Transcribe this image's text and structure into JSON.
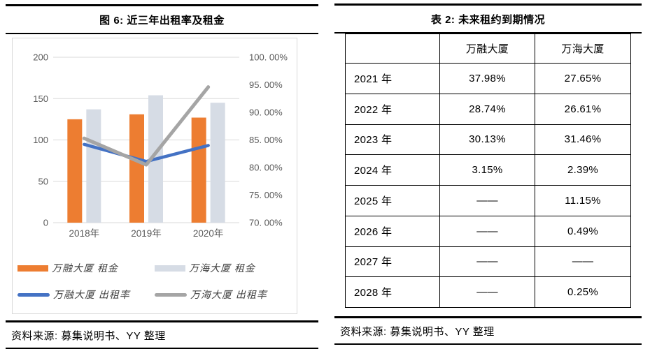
{
  "figure": {
    "title": "图 6: 近三年出租率及租金",
    "source": "资料来源: 募集说明书、YY 整理"
  },
  "chart_data": {
    "type": "combo-bar-line",
    "title": "近三年出租率及租金",
    "categories": [
      "2018年",
      "2019年",
      "2020年"
    ],
    "series": [
      {
        "name": "万融大厦 租金",
        "type": "bar",
        "axis": "left",
        "color": "#ED7D31",
        "values": [
          125,
          131,
          127
        ]
      },
      {
        "name": "万海大厦 租金",
        "type": "bar",
        "axis": "left",
        "color": "#D6DCE5",
        "values": [
          137,
          154,
          145
        ]
      },
      {
        "name": "万融大厦 出租率",
        "type": "line",
        "axis": "right",
        "color": "#4472C4",
        "values": [
          84.2,
          81.1,
          84.0
        ]
      },
      {
        "name": "万海大厦 出租率",
        "type": "line",
        "axis": "right",
        "color": "#A5A5A5",
        "values": [
          85.3,
          80.5,
          94.6
        ]
      }
    ],
    "left_axis": {
      "min": 0,
      "max": 200,
      "ticks": [
        "200",
        "150",
        "100",
        "50",
        "0"
      ]
    },
    "right_axis": {
      "min": 70,
      "max": 100,
      "ticks": [
        "100. 00%",
        "95. 00%",
        "90. 00%",
        "85. 00%",
        "80. 00%",
        "75. 00%",
        "70. 00%"
      ]
    },
    "grid": true,
    "legend_position": "bottom",
    "gridline_color": "#D9D9D9",
    "axis_label_color": "#595959"
  },
  "table": {
    "title": "表 2: 未来租约到期情况",
    "source": "资料来源: 募集说明书、YY 整理",
    "columns": [
      "",
      "万融大厦",
      "万海大厦"
    ],
    "rows": [
      [
        "2021 年",
        "37.98%",
        "27.65%"
      ],
      [
        "2022 年",
        "28.74%",
        "26.61%"
      ],
      [
        "2023 年",
        "30.13%",
        "31.46%"
      ],
      [
        "2024 年",
        "3.15%",
        "2.39%"
      ],
      [
        "2025 年",
        "——",
        "11.15%"
      ],
      [
        "2026 年",
        "——",
        "0.49%"
      ],
      [
        "2027 年",
        "——",
        "——"
      ],
      [
        "2028 年",
        "——",
        "0.25%"
      ]
    ]
  }
}
